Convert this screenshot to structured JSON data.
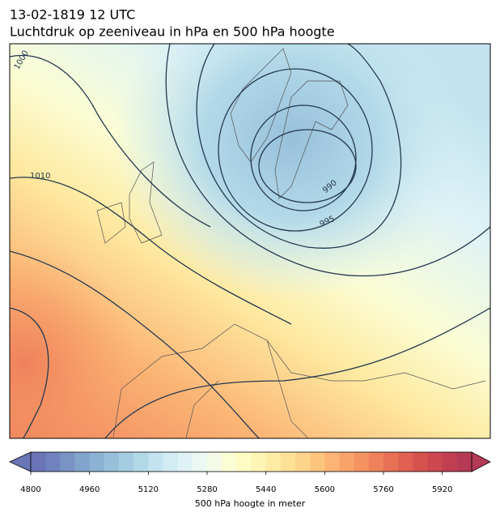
{
  "header": {
    "title": "13-02-1819 12 UTC",
    "subtitle": "Luchtdruk op zeeniveau in hPa en 500 hPa hoogte"
  },
  "contour_labels": [
    1000,
    1010,
    990,
    995
  ],
  "colorbar": {
    "label": "500 hPa hoogte in meter",
    "lim": [
      4800,
      6000
    ],
    "ticks": [
      4800,
      4960,
      5120,
      5280,
      5440,
      5600,
      5760,
      5920
    ],
    "colors": [
      "#6a74b6",
      "#6f82bd",
      "#7893c4",
      "#82a3cb",
      "#8cb2d3",
      "#98c0da",
      "#a5cde2",
      "#b3d9e9",
      "#c2e3ef",
      "#d1ecf3",
      "#dff3f6",
      "#ebf8f3",
      "#f4fbe6",
      "#fbfdd4",
      "#fefcc4",
      "#fef5b4",
      "#feeca4",
      "#fde196",
      "#fdd48a",
      "#fcc57e",
      "#fbb474",
      "#f8a36a",
      "#f49262",
      "#ef815b",
      "#e87055",
      "#e06051",
      "#d6524f",
      "#cc474f",
      "#c13f51",
      "#b43a55"
    ]
  }
}
